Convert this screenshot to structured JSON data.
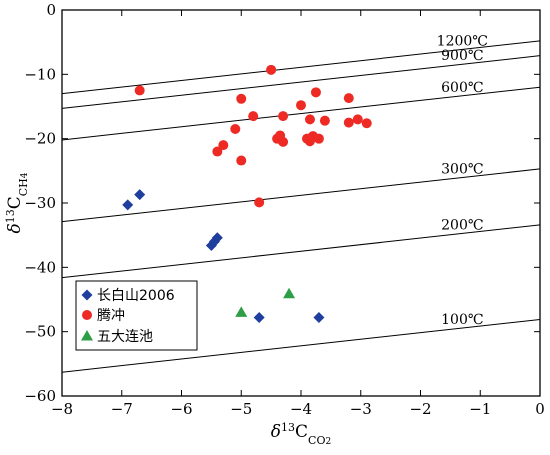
{
  "chart_data": {
    "type": "scatter",
    "xlabel": {
      "base": "δ",
      "sup": "13",
      "main": "C",
      "sub": "CO2",
      "sub_parts": [
        "CO",
        "2"
      ]
    },
    "ylabel": {
      "base": "δ",
      "sup": "13",
      "main": "C",
      "sub": "CH4",
      "sub_parts": [
        "CH",
        "4"
      ]
    },
    "xlim": [
      -8,
      0
    ],
    "ylim": [
      -60,
      0
    ],
    "xticks": [
      -8,
      -7,
      -6,
      -5,
      -4,
      -3,
      -2,
      -1,
      0
    ],
    "yticks": [
      -60,
      -50,
      -40,
      -30,
      -20,
      -10,
      0
    ],
    "x_tick_labels": [
      "−8",
      "−7",
      "−6",
      "−5",
      "−4",
      "−3",
      "−2",
      "−1",
      "0"
    ],
    "y_tick_labels": [
      "−60",
      "−50",
      "−40",
      "−30",
      "−20",
      "−10",
      "0"
    ],
    "grid": false,
    "legend_position": "bottom-left",
    "series": [
      {
        "name": "长白山2006",
        "marker": "diamond",
        "color": "#1f3f9f",
        "points": [
          {
            "x": -6.9,
            "y": -30.3
          },
          {
            "x": -6.7,
            "y": -28.7
          },
          {
            "x": -5.5,
            "y": -36.6
          },
          {
            "x": -5.45,
            "y": -36.0
          },
          {
            "x": -5.4,
            "y": -35.4
          },
          {
            "x": -4.7,
            "y": -47.8
          },
          {
            "x": -3.7,
            "y": -47.8
          }
        ]
      },
      {
        "name": "腾冲",
        "marker": "circle",
        "color": "#ee2a24",
        "points": [
          {
            "x": -6.7,
            "y": -12.5
          },
          {
            "x": -5.4,
            "y": -22.0
          },
          {
            "x": -5.3,
            "y": -21.0
          },
          {
            "x": -5.1,
            "y": -18.5
          },
          {
            "x": -5.0,
            "y": -13.8
          },
          {
            "x": -5.0,
            "y": -23.4
          },
          {
            "x": -4.8,
            "y": -16.5
          },
          {
            "x": -4.7,
            "y": -29.9
          },
          {
            "x": -4.5,
            "y": -9.3
          },
          {
            "x": -4.4,
            "y": -20.0
          },
          {
            "x": -4.35,
            "y": -19.5
          },
          {
            "x": -4.3,
            "y": -16.5
          },
          {
            "x": -4.3,
            "y": -20.5
          },
          {
            "x": -4.0,
            "y": -14.8
          },
          {
            "x": -3.9,
            "y": -20.0
          },
          {
            "x": -3.85,
            "y": -20.4
          },
          {
            "x": -3.85,
            "y": -17.0
          },
          {
            "x": -3.8,
            "y": -19.6
          },
          {
            "x": -3.75,
            "y": -12.8
          },
          {
            "x": -3.7,
            "y": -20.0
          },
          {
            "x": -3.6,
            "y": -17.2
          },
          {
            "x": -3.2,
            "y": -13.7
          },
          {
            "x": -3.2,
            "y": -17.5
          },
          {
            "x": -3.05,
            "y": -17.0
          },
          {
            "x": -2.9,
            "y": -17.6
          }
        ]
      },
      {
        "name": "五大连池",
        "marker": "triangle",
        "color": "#2e9e46",
        "points": [
          {
            "x": -5.0,
            "y": -47.0
          },
          {
            "x": -4.2,
            "y": -44.1
          }
        ]
      }
    ],
    "isotherms": [
      {
        "label": "1200℃",
        "y_at_xmin": -13.0,
        "y_at_xmax": -4.8
      },
      {
        "label": "900℃",
        "y_at_xmin": -15.3,
        "y_at_xmax": -7.1
      },
      {
        "label": "600℃",
        "y_at_xmin": -20.2,
        "y_at_xmax": -12.0
      },
      {
        "label": "300℃",
        "y_at_xmin": -32.9,
        "y_at_xmax": -24.7
      },
      {
        "label": "200℃",
        "y_at_xmin": -41.6,
        "y_at_xmax": -33.4
      },
      {
        "label": "100℃",
        "y_at_xmin": -56.3,
        "y_at_xmax": -48.1
      }
    ]
  }
}
